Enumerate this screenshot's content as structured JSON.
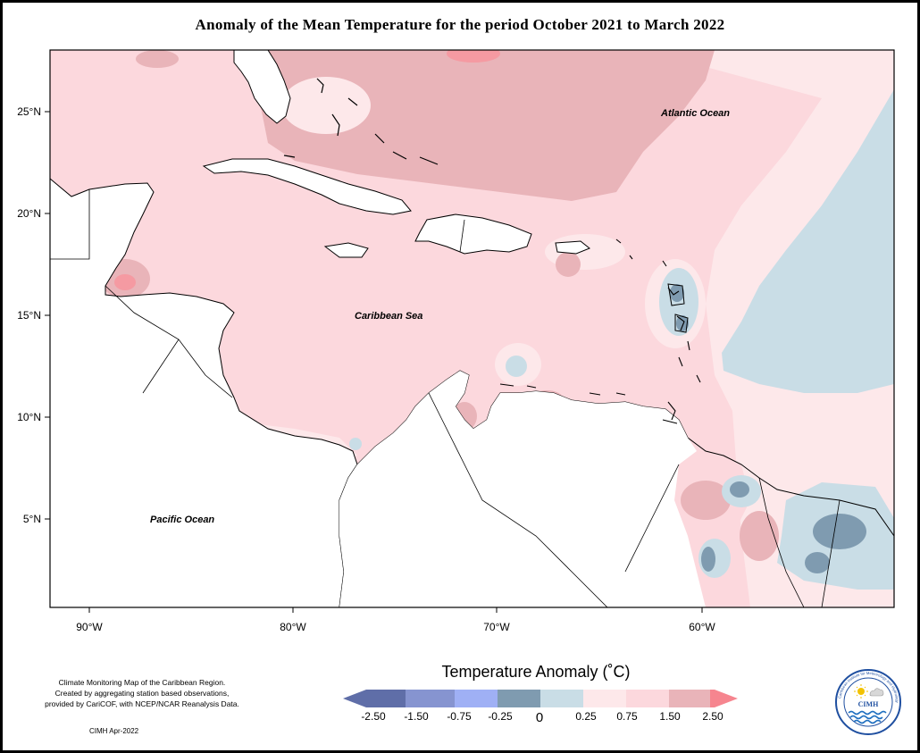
{
  "title": "Anomaly of the Mean Temperature for the period October 2021 to March 2022",
  "map": {
    "labels": {
      "atlantic": "Atlantic Ocean",
      "caribbean": "Caribbean Sea",
      "pacific": "Pacific Ocean"
    },
    "lat_ticks": [
      "25°N",
      "20°N",
      "15°N",
      "10°N",
      "5°N"
    ],
    "lon_ticks": [
      "90°W",
      "80°W",
      "70°W",
      "60°W"
    ]
  },
  "legend": {
    "title": "Temperature Anomaly (˚C)",
    "colors": [
      "#5f6ea8",
      "#8694d0",
      "#9fb0f5",
      "#7f9bb0",
      "#c9dde6",
      "#fde8ea",
      "#fcd8dd",
      "#e9b4b9",
      "#f59aa2",
      "#f6858f"
    ],
    "labels": [
      "-2.50",
      "-1.50",
      "-0.75",
      "-0.25",
      "0",
      "0.25",
      "0.75",
      "1.50",
      "2.50"
    ]
  },
  "footnote": {
    "line1": "Climate Monitoring Map of the Caribbean Region.",
    "line2": "Created by aggregating station based observations,",
    "line3": "provided by CariCOF, with NCEP/NCAR Reanalysis Data."
  },
  "credit": "CIMH Apr-2022",
  "logo": {
    "text": "CIMH",
    "ring_text": "Caribbean Institute for Meteorology and Hydrology"
  }
}
